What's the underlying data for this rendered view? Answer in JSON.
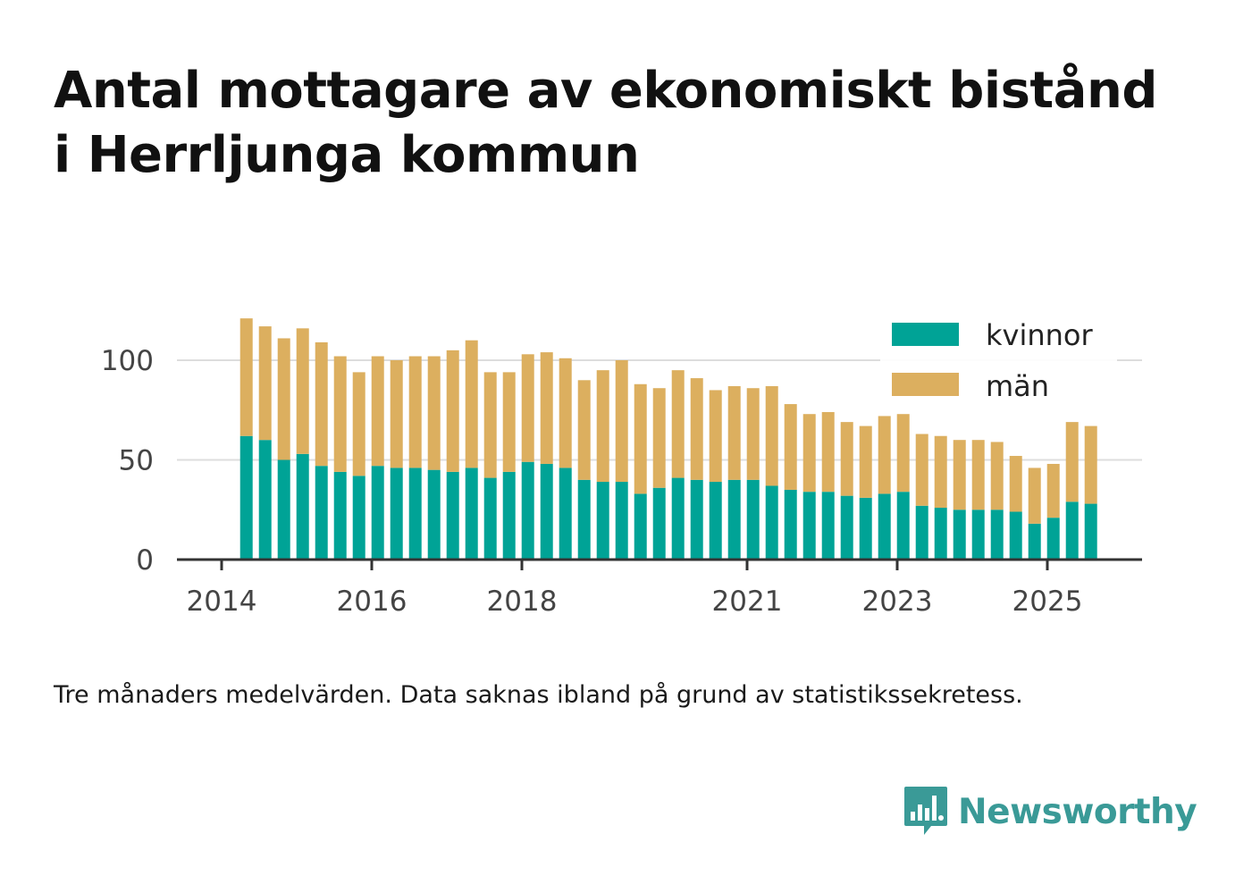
{
  "title": {
    "line1": "Antal mottagare av ekonomiskt bistånd",
    "line2": "i Herrljunga kommun"
  },
  "note": "Tre månaders medelvärden. Data saknas ibland på grund av statistikssekretess.",
  "brand": {
    "name": "Newsworthy",
    "icon": "bar-chart-speech-bubble-icon",
    "color": "#3a9a97"
  },
  "colors": {
    "kvinnor": "#00a396",
    "man": "#dcaf5f",
    "grid": "#dddddd",
    "axis": "#333333"
  },
  "chart_data": {
    "type": "bar",
    "stacked": true,
    "title": "Antal mottagare av ekonomiskt bistånd i Herrljunga kommun",
    "xlabel": "",
    "ylabel": "",
    "xlim": [
      2014.0,
      2026.25
    ],
    "ylim": [
      0,
      120
    ],
    "yticks": [
      0,
      50,
      100
    ],
    "xticks": [
      {
        "value": 2014.0,
        "label": "2014"
      },
      {
        "value": 2016.0,
        "label": "2016"
      },
      {
        "value": 2018.0,
        "label": "2018"
      },
      {
        "value": 2021.0,
        "label": "2021"
      },
      {
        "value": 2023.0,
        "label": "2023"
      },
      {
        "value": 2025.0,
        "label": "2025"
      }
    ],
    "grid": true,
    "legend_position": "top-right",
    "x": [
      2014.33,
      2014.58,
      2014.83,
      2015.08,
      2015.33,
      2015.58,
      2015.83,
      2016.08,
      2016.33,
      2016.58,
      2016.83,
      2017.08,
      2017.33,
      2017.58,
      2017.83,
      2018.08,
      2018.33,
      2018.58,
      2018.83,
      2019.08,
      2019.33,
      2019.58,
      2019.83,
      2020.08,
      2020.33,
      2020.58,
      2020.83,
      2021.08,
      2021.33,
      2021.58,
      2021.83,
      2022.08,
      2022.33,
      2022.58,
      2022.83,
      2023.08,
      2023.33,
      2023.58,
      2023.83,
      2024.08,
      2024.33,
      2024.58,
      2024.83,
      2025.08,
      2025.33,
      2025.58
    ],
    "series": [
      {
        "name": "kvinnor",
        "values": [
          62,
          60,
          50,
          53,
          47,
          44,
          42,
          47,
          46,
          46,
          45,
          44,
          46,
          41,
          44,
          49,
          48,
          46,
          40,
          39,
          39,
          33,
          36,
          41,
          40,
          39,
          40,
          40,
          37,
          35,
          34,
          34,
          32,
          31,
          33,
          34,
          27,
          26,
          25,
          25,
          25,
          24,
          18,
          21,
          29,
          28
        ]
      },
      {
        "name": "män",
        "values": [
          59,
          57,
          61,
          63,
          62,
          58,
          52,
          55,
          54,
          56,
          57,
          61,
          64,
          53,
          50,
          54,
          56,
          55,
          50,
          56,
          61,
          55,
          50,
          54,
          51,
          46,
          47,
          46,
          50,
          43,
          39,
          40,
          37,
          36,
          39,
          39,
          36,
          36,
          35,
          35,
          34,
          28,
          28,
          27,
          40,
          39
        ]
      }
    ]
  }
}
